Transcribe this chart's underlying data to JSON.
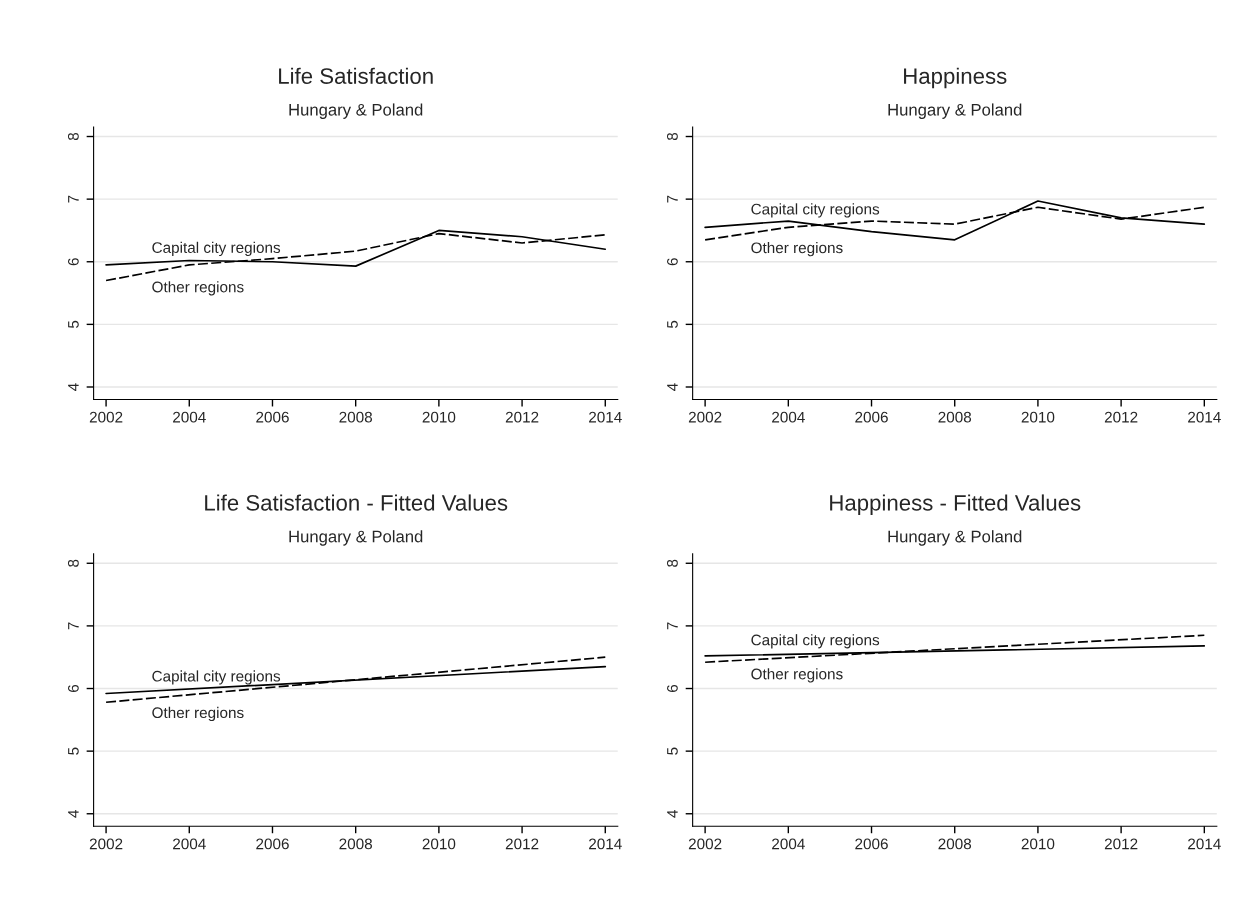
{
  "chart_data": [
    {
      "type": "line",
      "title": "Life Satisfaction",
      "subtitle": "Hungary & Poland",
      "x": [
        2002,
        2004,
        2006,
        2008,
        2010,
        2012,
        2014
      ],
      "xlim": [
        2001.7,
        2014.3
      ],
      "xticks": [
        2002,
        2004,
        2006,
        2008,
        2010,
        2012,
        2014
      ],
      "ylim": [
        3.8,
        8.15
      ],
      "yticks": [
        4,
        5,
        6,
        7,
        8
      ],
      "grid": "y",
      "legend": false,
      "series": [
        {
          "name": "Capital city regions",
          "color": "#000000",
          "line_style": "solid",
          "values": [
            5.95,
            6.02,
            6.0,
            5.93,
            6.5,
            6.4,
            6.2
          ]
        },
        {
          "name": "Other regions",
          "color": "#000000",
          "line_style": "dashed",
          "values": [
            5.7,
            5.95,
            6.05,
            6.17,
            6.45,
            6.3,
            6.43
          ]
        }
      ]
    },
    {
      "type": "line",
      "title": "Happiness",
      "subtitle": "Hungary & Poland",
      "x": [
        2002,
        2004,
        2006,
        2008,
        2010,
        2012,
        2014
      ],
      "xlim": [
        2001.7,
        2014.3
      ],
      "xticks": [
        2002,
        2004,
        2006,
        2008,
        2010,
        2012,
        2014
      ],
      "ylim": [
        3.8,
        8.15
      ],
      "yticks": [
        4,
        5,
        6,
        7,
        8
      ],
      "grid": "y",
      "legend": false,
      "series": [
        {
          "name": "Capital city regions",
          "color": "#000000",
          "line_style": "solid",
          "values": [
            6.55,
            6.65,
            6.48,
            6.35,
            6.97,
            6.7,
            6.6
          ]
        },
        {
          "name": "Other regions",
          "color": "#000000",
          "line_style": "dashed",
          "values": [
            6.35,
            6.55,
            6.65,
            6.6,
            6.87,
            6.68,
            6.87
          ]
        }
      ]
    },
    {
      "type": "line",
      "title": "Life Satisfaction - Fitted Values",
      "subtitle": "Hungary & Poland",
      "x": [
        2002,
        2014
      ],
      "xlim": [
        2001.7,
        2014.3
      ],
      "xticks": [
        2002,
        2004,
        2006,
        2008,
        2010,
        2012,
        2014
      ],
      "ylim": [
        3.8,
        8.15
      ],
      "yticks": [
        4,
        5,
        6,
        7,
        8
      ],
      "grid": "y",
      "legend": false,
      "series": [
        {
          "name": "Capital city regions",
          "color": "#000000",
          "line_style": "solid",
          "values": [
            5.92,
            6.35
          ]
        },
        {
          "name": "Other regions",
          "color": "#000000",
          "line_style": "dashed",
          "values": [
            5.78,
            6.5
          ]
        }
      ]
    },
    {
      "type": "line",
      "title": "Happiness - Fitted Values",
      "subtitle": "Hungary & Poland",
      "x": [
        2002,
        2014
      ],
      "xlim": [
        2001.7,
        2014.3
      ],
      "xticks": [
        2002,
        2004,
        2006,
        2008,
        2010,
        2012,
        2014
      ],
      "ylim": [
        3.8,
        8.15
      ],
      "yticks": [
        4,
        5,
        6,
        7,
        8
      ],
      "grid": "y",
      "legend": false,
      "series": [
        {
          "name": "Capital city regions",
          "color": "#000000",
          "line_style": "solid",
          "values": [
            6.52,
            6.68
          ]
        },
        {
          "name": "Other regions",
          "color": "#000000",
          "line_style": "dashed",
          "values": [
            6.42,
            6.85
          ]
        }
      ]
    }
  ]
}
